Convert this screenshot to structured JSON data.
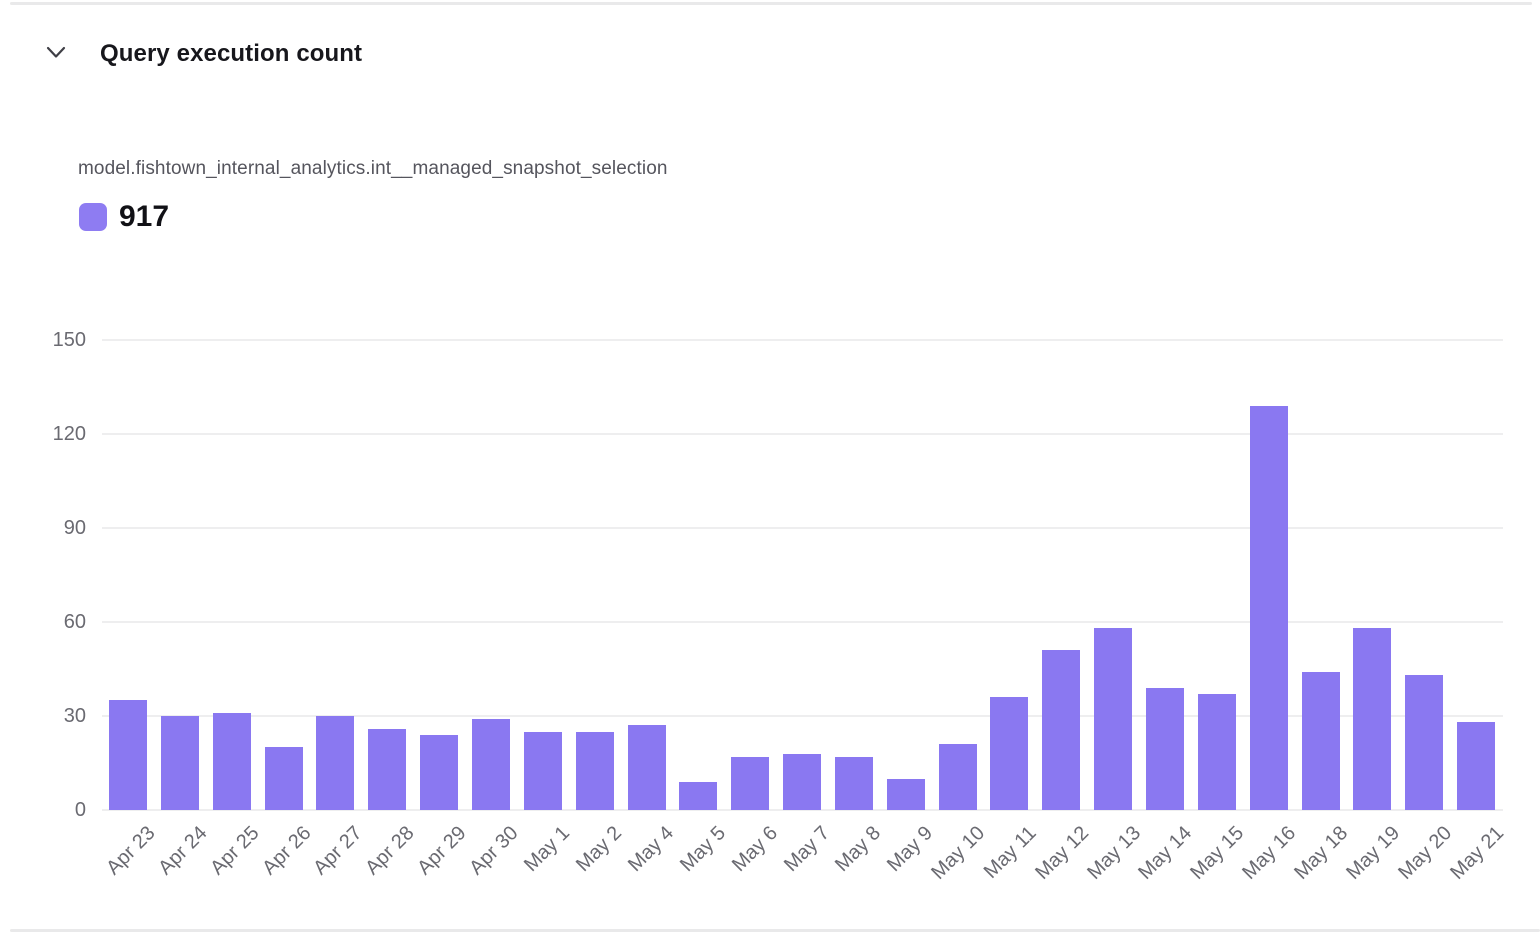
{
  "header": {
    "title": "Query execution count"
  },
  "series": {
    "model_name": "model.fishtown_internal_analytics.int__managed_snapshot_selection",
    "total": "917"
  },
  "colors": {
    "bar": "#8A78F1",
    "swatch": "#8E7CF2",
    "grid_line": "#eeeeef",
    "axis_label": "#6a6a71",
    "title_text": "#17171c",
    "model_text": "#55555d",
    "divider": "#e9e9ea",
    "background": "#ffffff"
  },
  "chart_data": {
    "type": "bar",
    "title": "Query execution count",
    "series_name": "model.fishtown_internal_analytics.int__managed_snapshot_selection",
    "series_total": 917,
    "categories": [
      "Apr 23",
      "Apr 24",
      "Apr 25",
      "Apr 26",
      "Apr 27",
      "Apr 28",
      "Apr 29",
      "Apr 30",
      "May 1",
      "May 2",
      "May 4",
      "May 5",
      "May 6",
      "May 7",
      "May 8",
      "May 9",
      "May 10",
      "May 11",
      "May 12",
      "May 13",
      "May 14",
      "May 15",
      "May 16",
      "May 18",
      "May 19",
      "May 20",
      "May 21"
    ],
    "values": [
      35,
      30,
      31,
      20,
      30,
      26,
      24,
      29,
      25,
      25,
      27,
      9,
      17,
      18,
      17,
      10,
      21,
      36,
      51,
      58,
      39,
      37,
      129,
      44,
      58,
      43,
      28
    ],
    "xlabel": "",
    "ylabel": "",
    "ylim": [
      0,
      150
    ],
    "yticks": [
      0,
      30,
      60,
      90,
      120,
      150
    ],
    "grid": true,
    "bar_color": "#8A78F1",
    "legend_position": "top-left"
  }
}
